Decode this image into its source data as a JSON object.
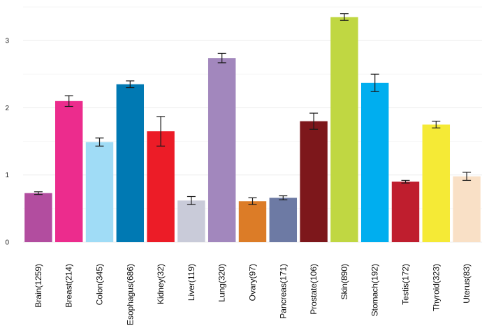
{
  "chart_data": {
    "type": "bar",
    "title": "",
    "xlabel": "",
    "ylabel": "",
    "ylim": [
      0,
      3.5
    ],
    "yticks": [
      0,
      1,
      2,
      3
    ],
    "grid": true,
    "legend": "none",
    "categories": [
      "Brain(1259)",
      "Breast(214)",
      "Colon(345)",
      "Esophagus(686)",
      "Kidney(32)",
      "Liver(119)",
      "Lung(320)",
      "Ovary(97)",
      "Pancreas(171)",
      "Prostate(106)",
      "Skin(890)",
      "Stomach(192)",
      "Testis(172)",
      "Thyroid(323)",
      "Uterus(83)"
    ],
    "values": [
      0.73,
      2.1,
      1.49,
      2.35,
      1.65,
      0.62,
      2.74,
      0.61,
      0.66,
      1.8,
      3.35,
      2.37,
      0.9,
      1.75,
      0.98
    ],
    "errors": [
      0.02,
      0.08,
      0.06,
      0.05,
      0.22,
      0.06,
      0.07,
      0.05,
      0.03,
      0.12,
      0.05,
      0.13,
      0.02,
      0.05,
      0.06
    ],
    "colors": [
      "#b24d9f",
      "#ec2c8d",
      "#a0dcf6",
      "#0079b3",
      "#ec1c27",
      "#c9cbd9",
      "#a287bd",
      "#dc7c27",
      "#6d7aa4",
      "#7d171b",
      "#c0d742",
      "#00aeef",
      "#bf1e2e",
      "#f5ea36",
      "#f9e0c6"
    ]
  }
}
